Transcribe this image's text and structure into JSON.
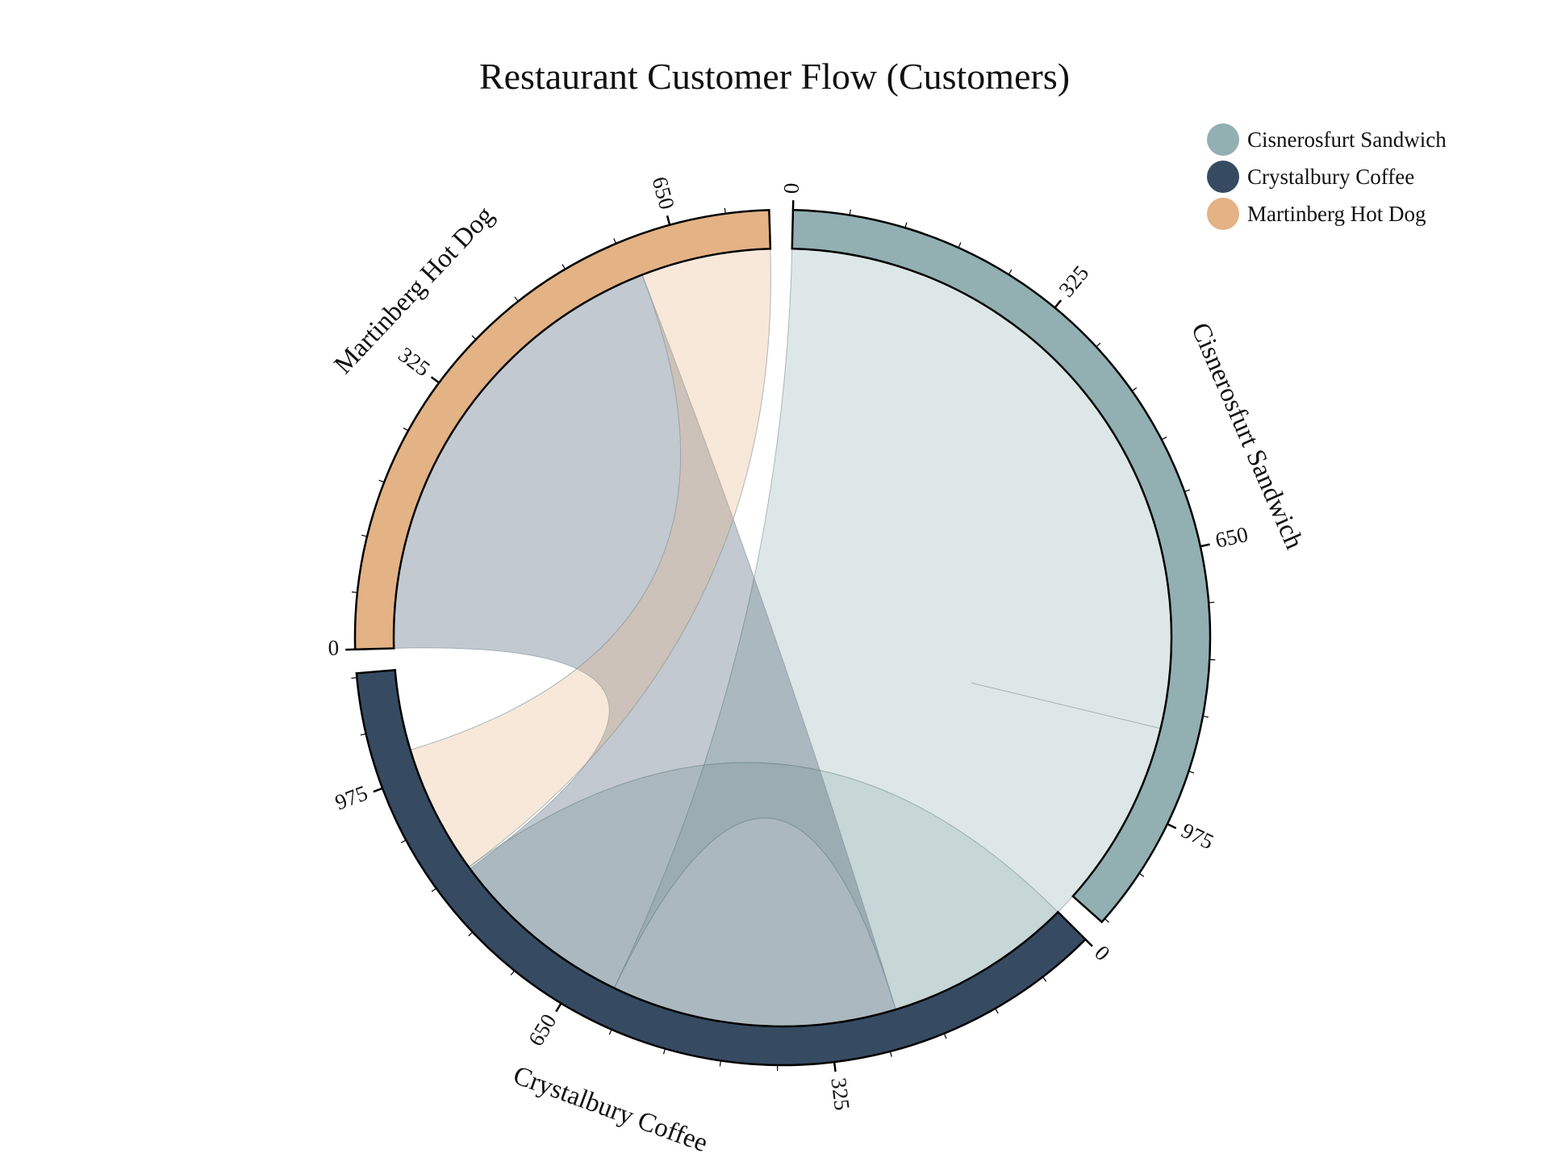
{
  "chart_data": {
    "type": "chord",
    "title": "Restaurant Customer Flow (Customers)",
    "groups": [
      {
        "name": "Cisnerosfurt Sandwich",
        "color": "#92afb1",
        "total": 1110
      },
      {
        "name": "Crystalbury Coffee",
        "color": "#364b62",
        "total": 1110
      },
      {
        "name": "Martinberg Hot Dog",
        "color": "#e3b285",
        "total": 765
      }
    ],
    "flows": [
      {
        "from": "Cisnerosfurt Sandwich",
        "to": "Cisnerosfurt Sandwich",
        "value": 870
      },
      {
        "from": "Cisnerosfurt Sandwich",
        "to": "Crystalbury Coffee",
        "value": 240
      },
      {
        "from": "Crystalbury Coffee",
        "to": "Martinberg Hot Dog",
        "value": 600
      },
      {
        "from": "Martinberg Hot Dog",
        "to": "Cisnerosfurt Sandwich",
        "value": 165
      }
    ],
    "tick_labels": [
      "0",
      "325",
      "650",
      "975"
    ],
    "legend_position": "top-right"
  }
}
